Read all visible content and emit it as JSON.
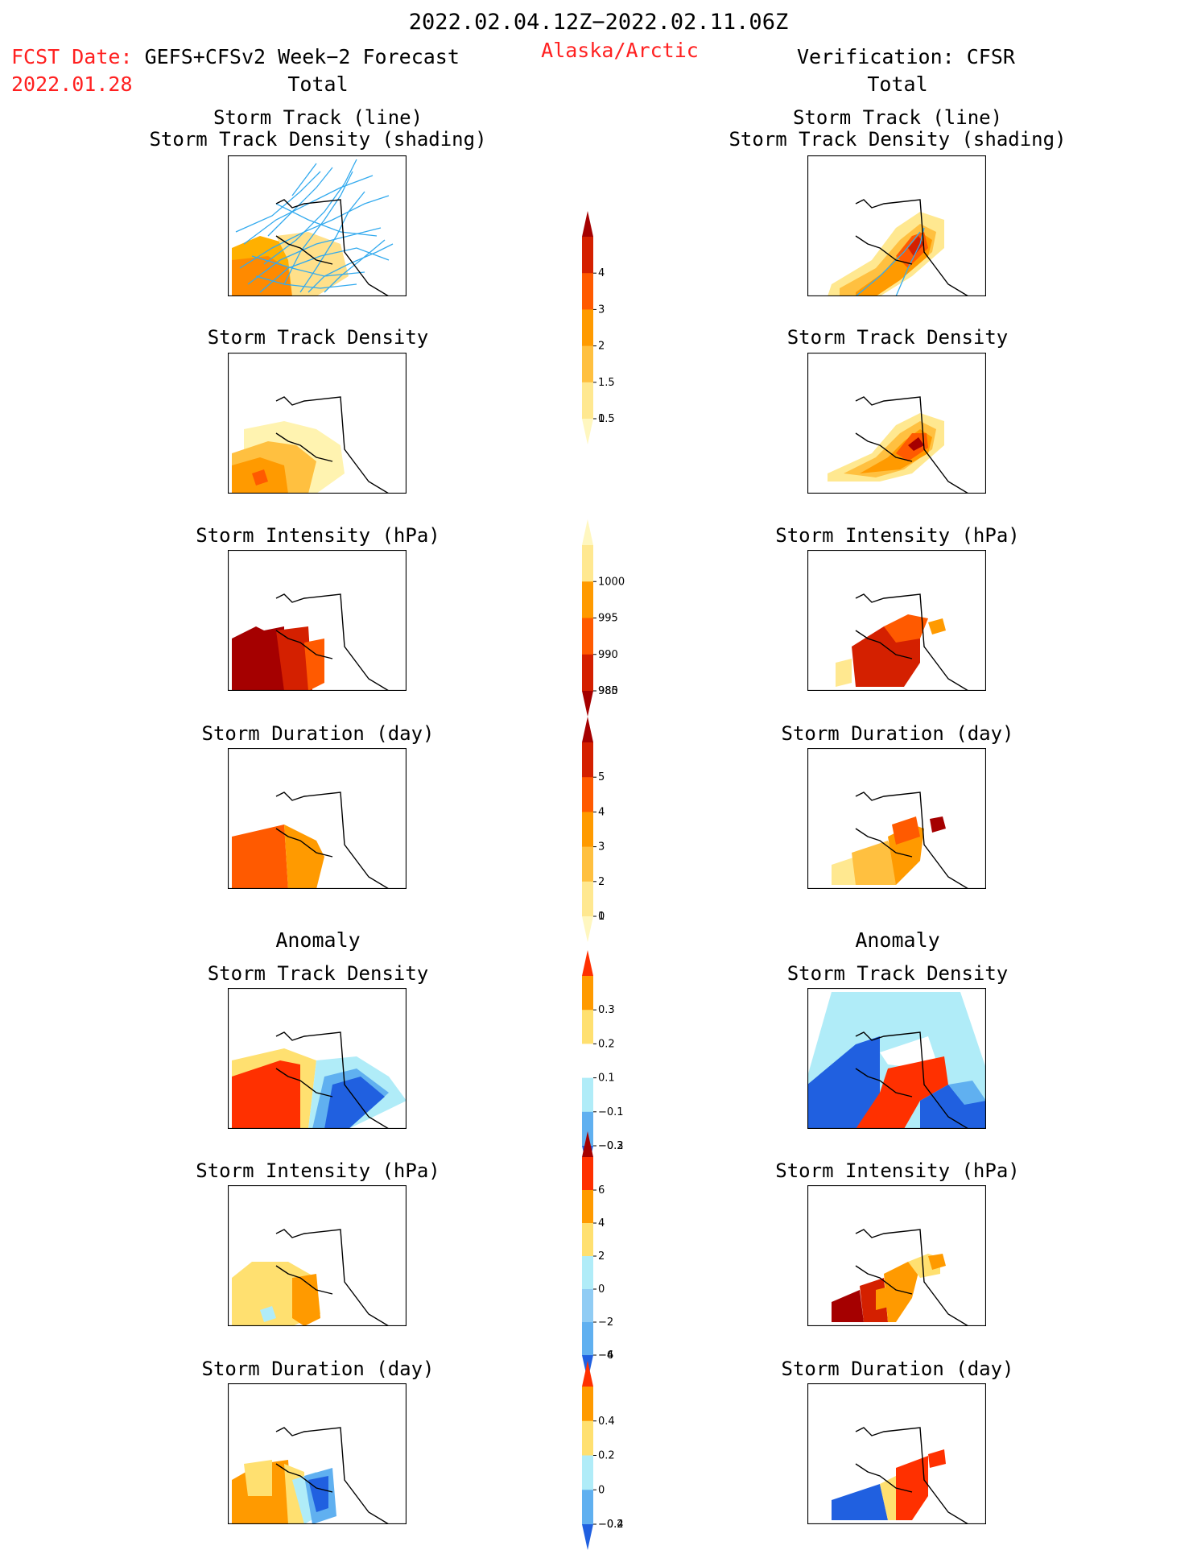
{
  "header": {
    "title": "2022.02.04.12Z−2022.02.11.06Z",
    "fcst_prefix": "FCST Date:",
    "fcst_model": "GEFS+CFSv2 Week−2 Forecast",
    "fcst_date": "2022.01.28",
    "region": "Alaska/Arctic",
    "verification": "Verification: CFSR"
  },
  "left_column": {
    "total_label": "Total",
    "anomaly_label": "Anomaly",
    "panels": [
      {
        "title1": "Storm Track (line)",
        "title2": "Storm Track Density (shading)"
      },
      {
        "title1": "Storm Track Density"
      },
      {
        "title1": "Storm Intensity (hPa)"
      },
      {
        "title1": "Storm Duration (day)"
      },
      {
        "title1": "Storm Track Density"
      },
      {
        "title1": "Storm Intensity (hPa)"
      },
      {
        "title1": "Storm Duration (day)"
      }
    ]
  },
  "right_column": {
    "total_label": "Total",
    "anomaly_label": "Anomaly",
    "panels": [
      {
        "title1": "Storm Track (line)",
        "title2": "Storm Track Density (shading)"
      },
      {
        "title1": "Storm Track Density"
      },
      {
        "title1": "Storm Intensity (hPa)"
      },
      {
        "title1": "Storm Duration (day)"
      },
      {
        "title1": "Storm Track Density"
      },
      {
        "title1": "Storm Intensity (hPa)"
      },
      {
        "title1": "Storm Duration (day)"
      }
    ]
  },
  "colorbars": {
    "density_total": {
      "labels": [
        "4",
        "3",
        "2",
        "1.5",
        "1",
        "0.5"
      ],
      "colors": [
        "#a50000",
        "#d42000",
        "#ff5a00",
        "#ff9a00",
        "#ffc040",
        "#ffe890",
        "#fff7c0"
      ]
    },
    "intensity_total": {
      "labels": [
        "1000",
        "995",
        "990",
        "985",
        "980"
      ],
      "colors": [
        "#fff7c0",
        "#ffe890",
        "#ff9a00",
        "#ff5a00",
        "#d42000",
        "#a50000"
      ]
    },
    "duration_total": {
      "labels": [
        "5",
        "4",
        "3",
        "2",
        "1",
        "0"
      ],
      "colors": [
        "#a50000",
        "#d42000",
        "#ff5a00",
        "#ff9a00",
        "#ffc040",
        "#ffe890",
        "#fff7c0"
      ]
    },
    "density_anom": {
      "labels": [
        "0.3",
        "0.2",
        "0.1",
        "−0.1",
        "−0.2",
        "−0.3"
      ],
      "colors": [
        "#ff3000",
        "#ff9a00",
        "#ffe070",
        "#ffffff",
        "#b0ecf8",
        "#60b0f0",
        "#2060e0"
      ]
    },
    "intensity_anom": {
      "labels": [
        "6",
        "4",
        "2",
        "0",
        "−2",
        "−4",
        "−6"
      ],
      "colors": [
        "#a50000",
        "#ff3000",
        "#ff9a00",
        "#ffe070",
        "#b0ecf8",
        "#90ccf4",
        "#60b0f0",
        "#2060e0"
      ]
    },
    "duration_anom": {
      "labels": [
        "0.4",
        "0.2",
        "0",
        "−0.2",
        "−0.4"
      ],
      "colors": [
        "#ff3000",
        "#ff9a00",
        "#ffe070",
        "#b0ecf8",
        "#60b0f0",
        "#2060e0"
      ]
    }
  },
  "map_colors": {
    "track_line": "#33aaee",
    "coast": "#000000"
  }
}
